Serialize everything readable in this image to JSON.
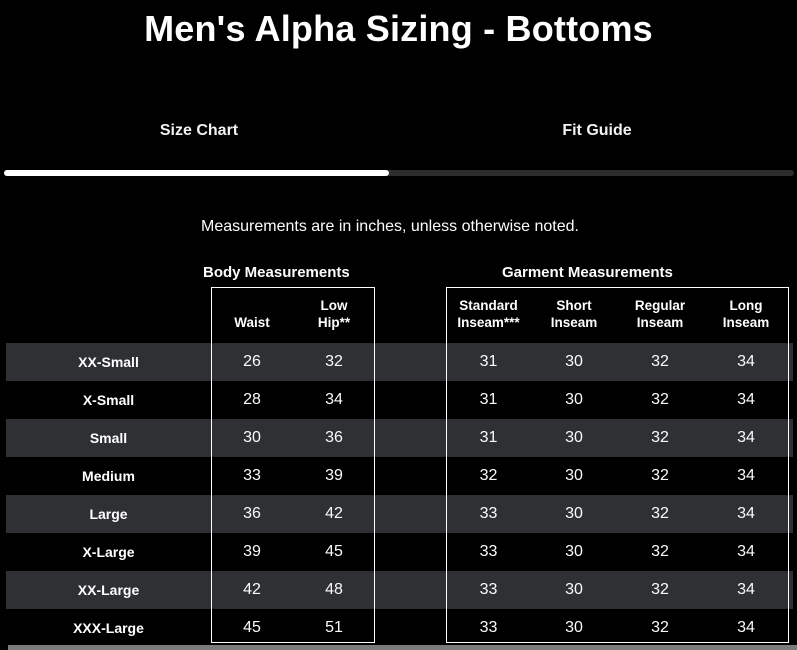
{
  "page": {
    "title": "Men's Alpha Sizing - Bottoms",
    "note": "Measurements are in inches, unless otherwise noted."
  },
  "tabs": {
    "size_chart": {
      "label": "Size Chart",
      "active": true
    },
    "fit_guide": {
      "label": "Fit Guide",
      "active": false
    }
  },
  "sections": {
    "body_label": "Body Measurements",
    "garment_label": "Garment Measurements"
  },
  "table": {
    "headers": [
      [
        "Waist"
      ],
      [
        "Low",
        "Hip**"
      ],
      [
        "Standard",
        "Inseam***"
      ],
      [
        "Short",
        "Inseam"
      ],
      [
        "Regular",
        "Inseam"
      ],
      [
        "Long",
        "Inseam"
      ]
    ],
    "rows": [
      {
        "size": "XX-Small",
        "values": [
          "26",
          "32",
          "31",
          "30",
          "32",
          "34"
        ]
      },
      {
        "size": "X-Small",
        "values": [
          "28",
          "34",
          "31",
          "30",
          "32",
          "34"
        ]
      },
      {
        "size": "Small",
        "values": [
          "30",
          "36",
          "31",
          "30",
          "32",
          "34"
        ]
      },
      {
        "size": "Medium",
        "values": [
          "33",
          "39",
          "32",
          "30",
          "32",
          "34"
        ]
      },
      {
        "size": "Large",
        "values": [
          "36",
          "42",
          "33",
          "30",
          "32",
          "34"
        ]
      },
      {
        "size": "X-Large",
        "values": [
          "39",
          "45",
          "33",
          "30",
          "32",
          "34"
        ]
      },
      {
        "size": "XX-Large",
        "values": [
          "42",
          "48",
          "33",
          "30",
          "32",
          "34"
        ]
      },
      {
        "size": "XXX-Large",
        "values": [
          "45",
          "51",
          "33",
          "30",
          "32",
          "34"
        ]
      }
    ]
  },
  "colors": {
    "background": "#000000",
    "stripe_row": "#2e3033",
    "text": "#ffffff",
    "active_underline": "#ffffff",
    "inactive_underline": "#2d2d2d",
    "box_border": "#ffffff",
    "scrollbar": "#7b7b7b"
  }
}
